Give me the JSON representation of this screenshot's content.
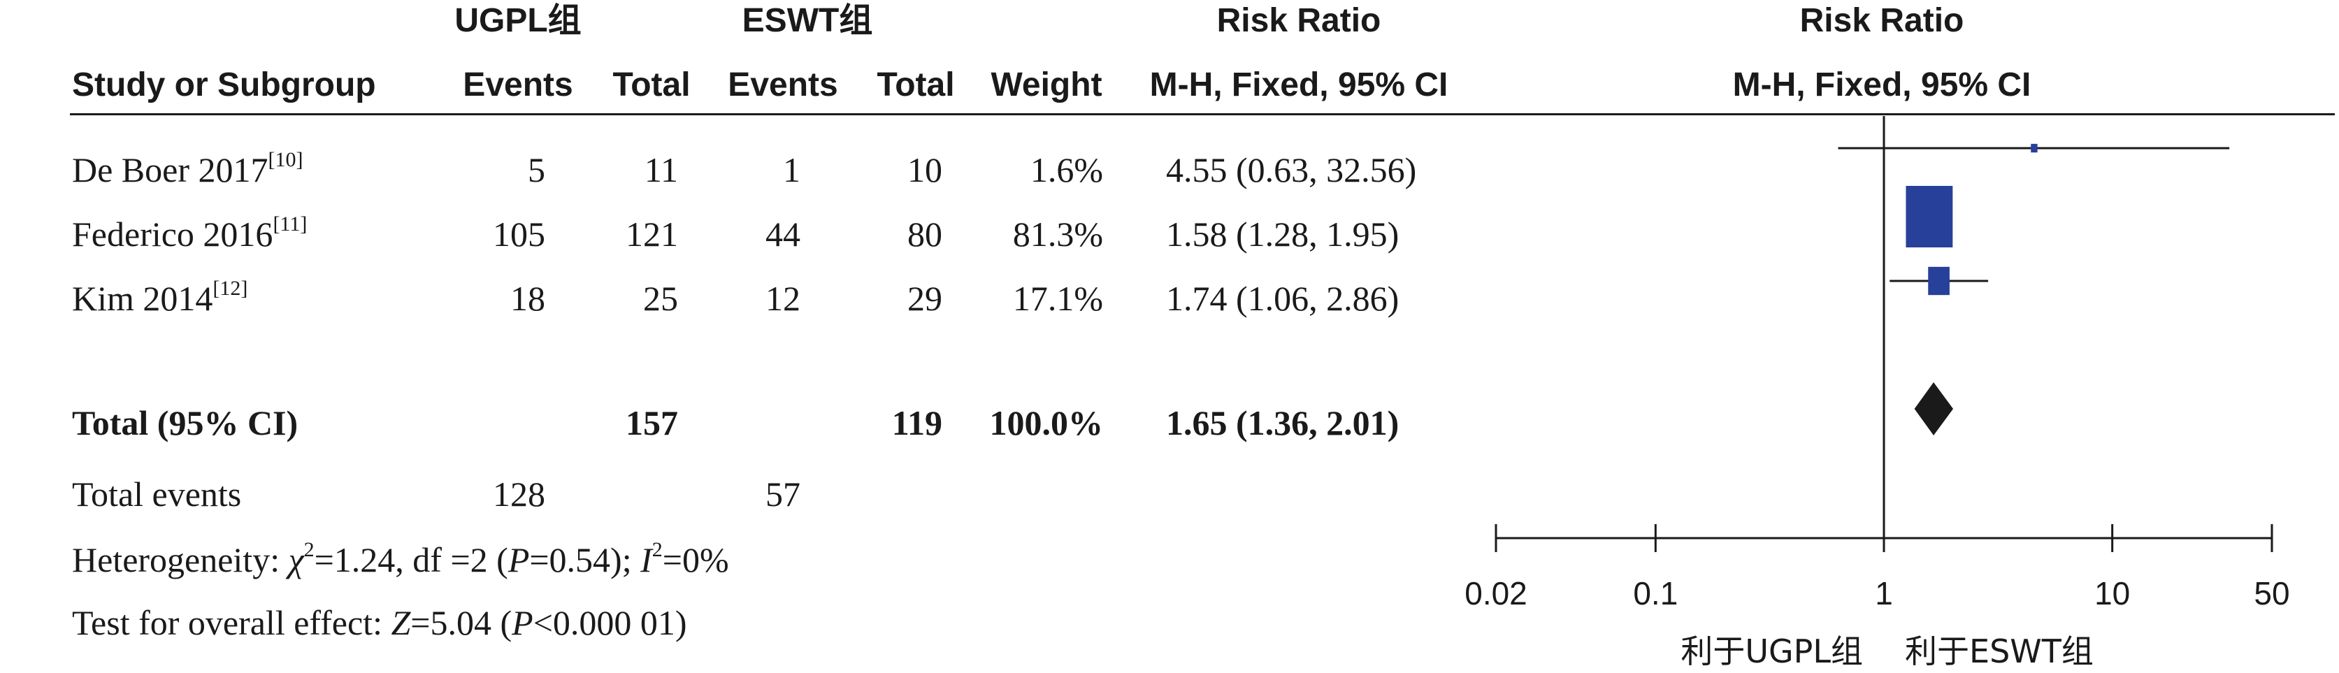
{
  "header": {
    "group1_title": "UGPL组",
    "group2_title": "ESWT组",
    "rr_title": "Risk Ratio",
    "rr_plot_title": "Risk Ratio",
    "study_col": "Study or Subgroup",
    "events_col": "Events",
    "total_col": "Total",
    "events2_col": "Events",
    "total2_col": "Total",
    "weight_col": "Weight",
    "method_col": "M-H, Fixed, 95% CI",
    "method_plot_col": "M-H, Fixed, 95% CI"
  },
  "studies": [
    {
      "name": "De Boer 2017",
      "ref": "[10]",
      "e1": "5",
      "t1": "11",
      "e2": "1",
      "t2": "10",
      "weight": "1.6%",
      "ci_text": "4.55 (0.63, 32.56)"
    },
    {
      "name": "Federico 2016",
      "ref": "[11]",
      "e1": "105",
      "t1": "121",
      "e2": "44",
      "t2": "80",
      "weight": "81.3%",
      "ci_text": "1.58 (1.28, 1.95)"
    },
    {
      "name": "Kim 2014",
      "ref": "[12]",
      "e1": "18",
      "t1": "25",
      "e2": "12",
      "t2": "29",
      "weight": "17.1%",
      "ci_text": "1.74 (1.06, 2.86)"
    }
  ],
  "total": {
    "label": "Total (95% CI)",
    "t1": "157",
    "t2": "119",
    "weight": "100.0%",
    "ci_text": "1.65 (1.36, 2.01)"
  },
  "total_events": {
    "label": "Total events",
    "e1": "128",
    "e2": "57"
  },
  "heterogeneity": {
    "prefix": "Heterogeneity: ",
    "chi": "χ",
    "chi_sup": "2",
    "chi_val": "=1.24, df =2 (",
    "p": "P",
    "p_val": "=0.54); ",
    "i": "I",
    "i_sup": "2",
    "i_val": "=0%"
  },
  "overall": {
    "prefix": "Test for overall effect: ",
    "z": "Z",
    "z_val": "=5.04 (",
    "p": "P",
    "p_val": "<0.000 01)"
  },
  "chart_data": {
    "type": "forest",
    "scale": "log",
    "xlim": [
      0.02,
      50
    ],
    "xticks": [
      "0.02",
      "0.1",
      "1",
      "10",
      "50"
    ],
    "xtick_values": [
      0.02,
      0.1,
      1,
      10,
      50
    ],
    "favours_left": "利于UGPL组",
    "favours_right": "利于ESWT组",
    "points": [
      {
        "name": "De Boer 2017",
        "rr": 4.55,
        "lo": 0.63,
        "hi": 32.56,
        "weight": 1.6
      },
      {
        "name": "Federico 2016",
        "rr": 1.58,
        "lo": 1.28,
        "hi": 1.95,
        "weight": 81.3
      },
      {
        "name": "Kim 2014",
        "rr": 1.74,
        "lo": 1.06,
        "hi": 2.86,
        "weight": 17.1
      }
    ],
    "pooled": {
      "rr": 1.65,
      "lo": 1.36,
      "hi": 2.01
    },
    "colors": {
      "square": "#27409a",
      "diamond": "#1a1a1a",
      "line": "#1a1a1a"
    }
  }
}
